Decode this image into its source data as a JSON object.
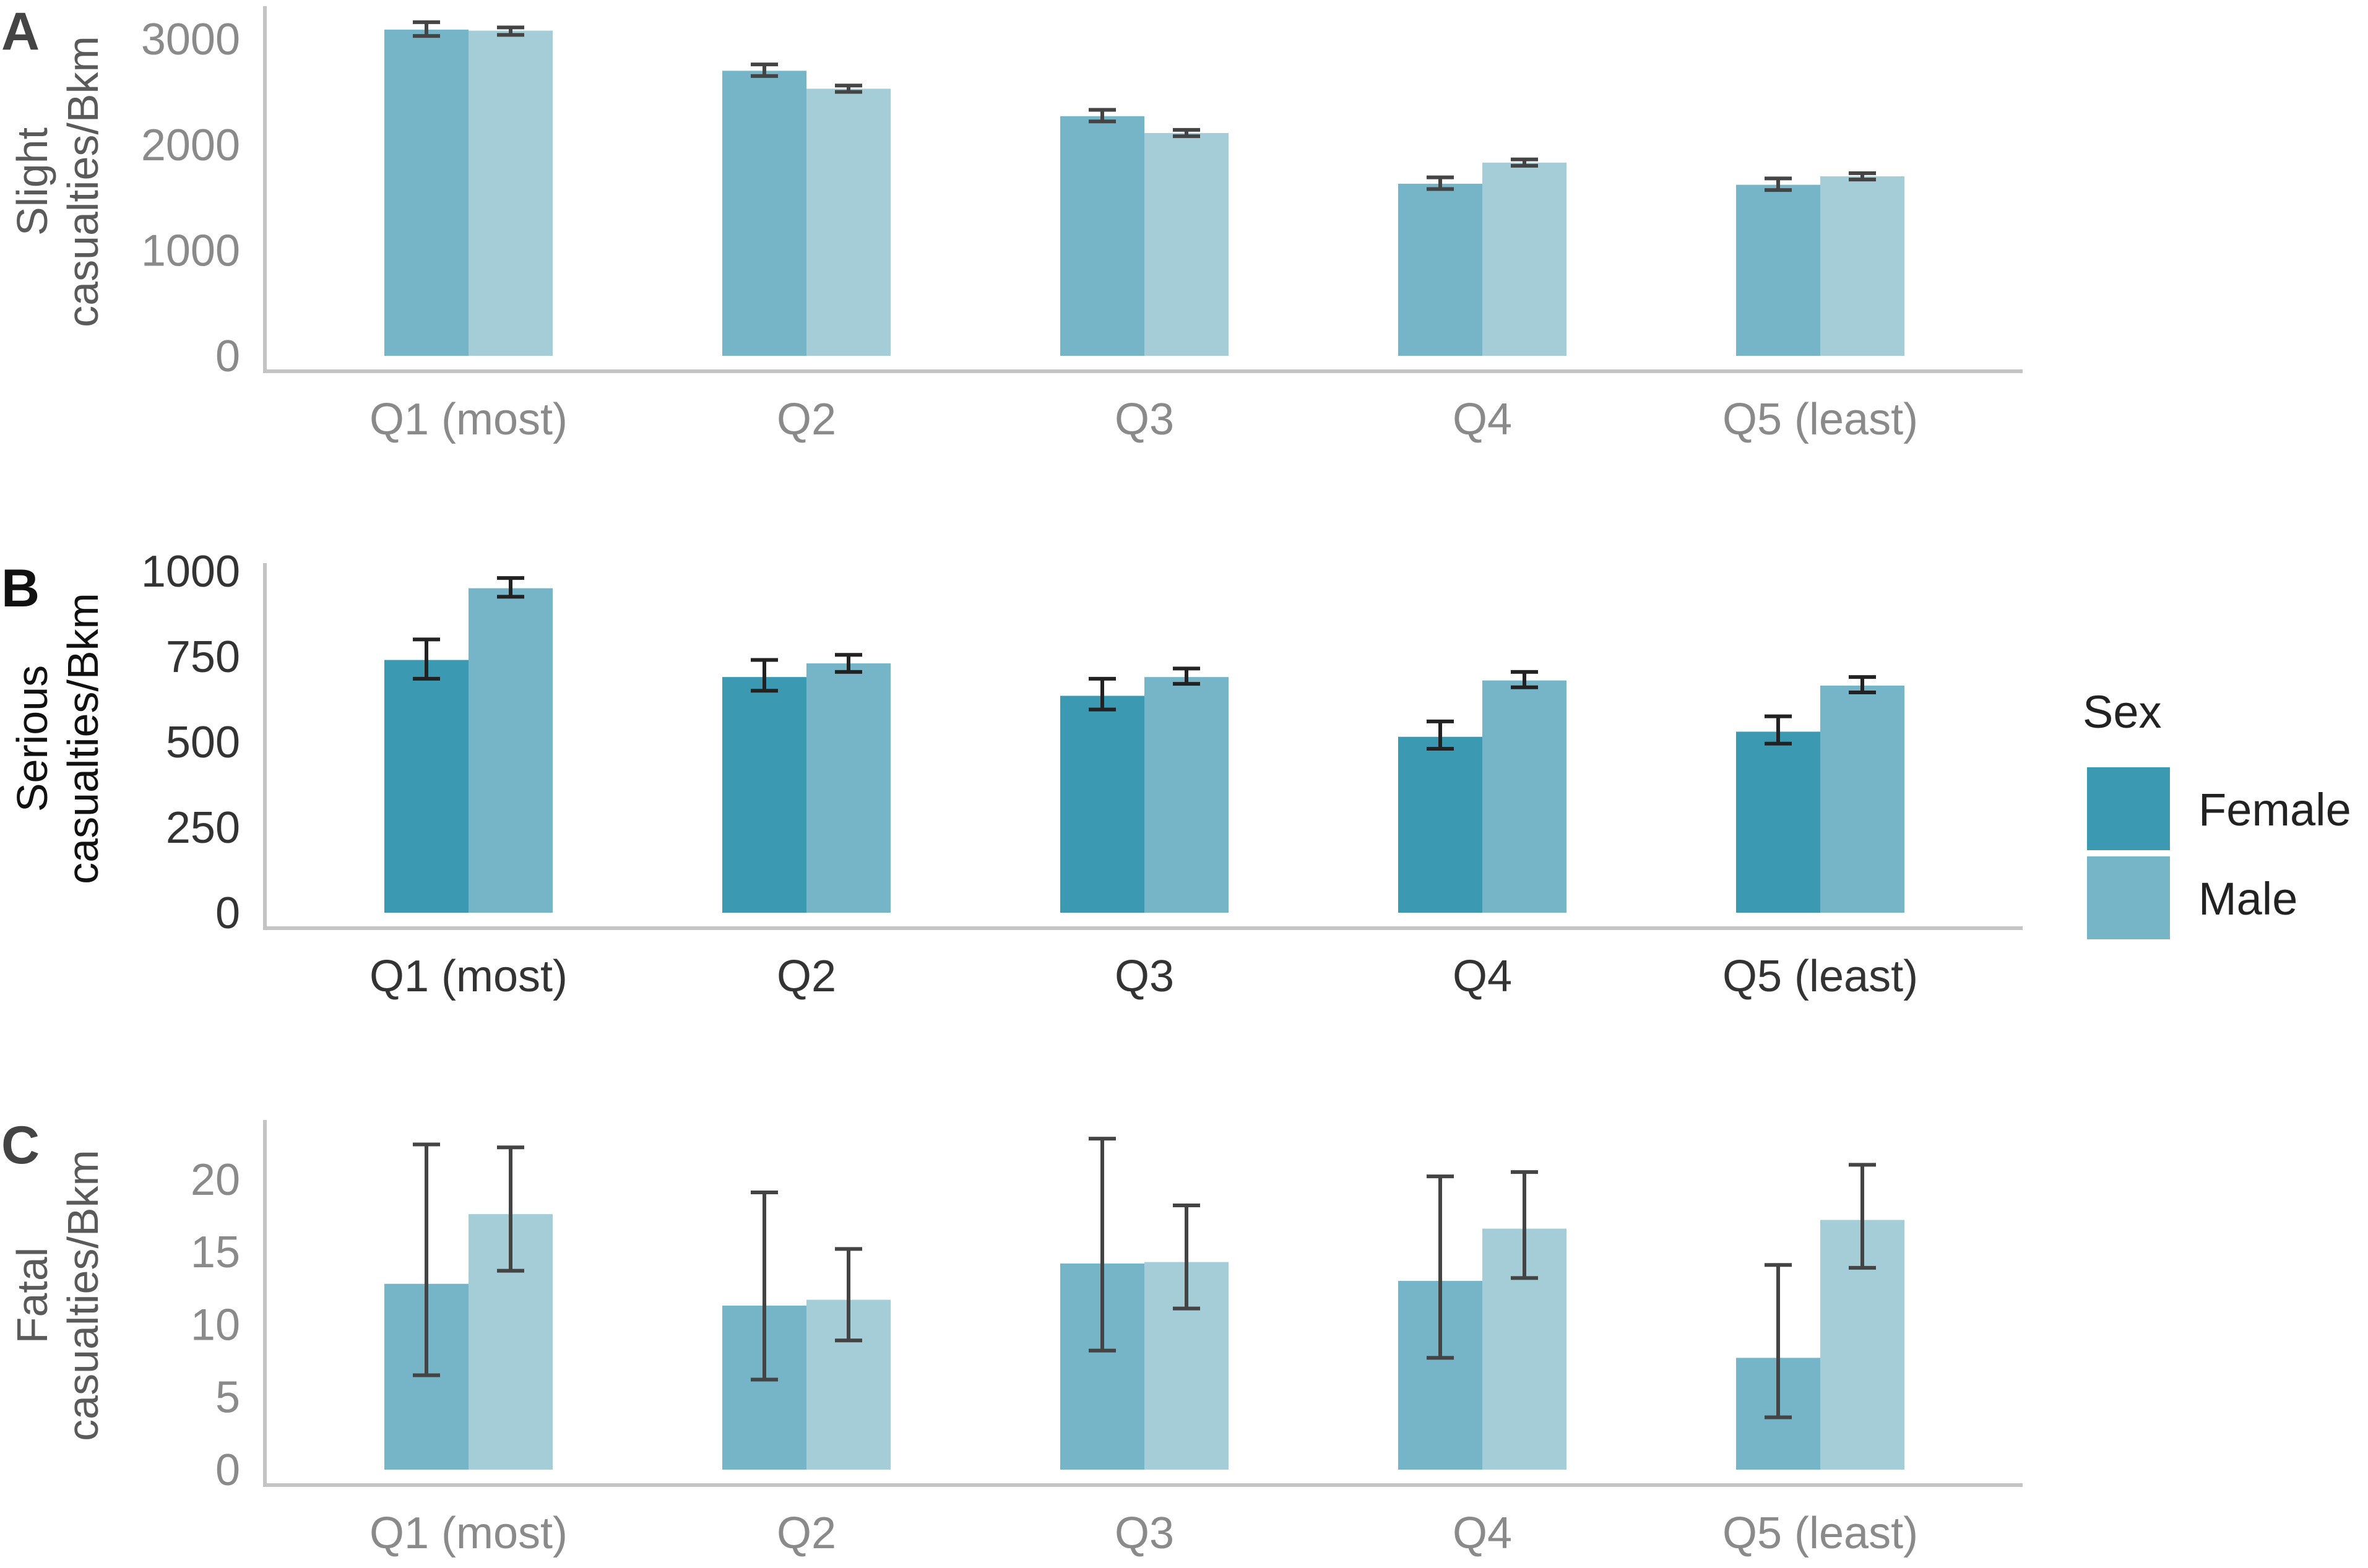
{
  "chart_data": [
    {
      "panel": "A",
      "type": "bar",
      "emphasis": "muted",
      "ylabel_lines": [
        "Slight",
        "casualties/Bkm"
      ],
      "categories": [
        "Q1 (most)",
        "Q2",
        "Q3",
        "Q4",
        "Q5 (least)"
      ],
      "ylim": [
        0,
        3300
      ],
      "yticks": [
        0,
        1000,
        2000,
        3000
      ],
      "series": [
        {
          "name": "Female",
          "values": [
            3090,
            2700,
            2270,
            1630,
            1620
          ],
          "err_low": [
            3030,
            2650,
            2220,
            1580,
            1570
          ],
          "err_high": [
            3160,
            2760,
            2330,
            1690,
            1680
          ]
        },
        {
          "name": "Male",
          "values": [
            3080,
            2530,
            2110,
            1830,
            1700
          ],
          "err_low": [
            3040,
            2500,
            2080,
            1800,
            1670
          ],
          "err_high": [
            3110,
            2560,
            2140,
            1860,
            1730
          ]
        }
      ]
    },
    {
      "panel": "B",
      "type": "bar",
      "emphasis": "highlight",
      "ylabel_lines": [
        "Serious",
        "casualties/Bkm"
      ],
      "categories": [
        "Q1 (most)",
        "Q2",
        "Q3",
        "Q4",
        "Q5 (least)"
      ],
      "ylim": [
        0,
        1020
      ],
      "yticks": [
        0,
        250,
        500,
        750,
        1000
      ],
      "series": [
        {
          "name": "Female",
          "values": [
            740,
            690,
            635,
            515,
            530
          ],
          "err_low": [
            685,
            650,
            595,
            480,
            495
          ],
          "err_high": [
            800,
            740,
            685,
            560,
            575
          ]
        },
        {
          "name": "Male",
          "values": [
            950,
            730,
            690,
            680,
            665
          ],
          "err_low": [
            925,
            705,
            670,
            660,
            645
          ],
          "err_high": [
            980,
            755,
            715,
            705,
            690
          ]
        }
      ]
    },
    {
      "panel": "C",
      "type": "bar",
      "emphasis": "muted",
      "ylabel_lines": [
        "Fatal",
        "casualties/Bkm"
      ],
      "categories": [
        "Q1 (most)",
        "Q2",
        "Q3",
        "Q4",
        "Q5 (least)"
      ],
      "ylim": [
        0,
        24
      ],
      "yticks": [
        0,
        5,
        10,
        15,
        20
      ],
      "series": [
        {
          "name": "Female",
          "values": [
            12.8,
            11.3,
            14.2,
            13.0,
            7.7
          ],
          "err_low": [
            6.5,
            6.2,
            8.2,
            7.7,
            3.6
          ],
          "err_high": [
            22.4,
            19.1,
            22.8,
            20.2,
            14.1
          ]
        },
        {
          "name": "Male",
          "values": [
            17.6,
            11.7,
            14.3,
            16.6,
            17.2
          ],
          "err_low": [
            13.7,
            8.9,
            11.1,
            13.2,
            13.9
          ],
          "err_high": [
            22.2,
            15.2,
            18.2,
            20.5,
            21.0
          ]
        }
      ]
    }
  ],
  "legend": {
    "title": "Sex",
    "items": [
      {
        "label": "Female"
      },
      {
        "label": "Male"
      }
    ]
  },
  "colors": {
    "female_muted": "#76b5c7",
    "male_muted": "#a4cdd8",
    "female_highlight": "#3b99b2",
    "male_highlight": "#76b5c7",
    "error_bar": "#444444",
    "error_bar_highlight": "#222222",
    "axis": "#c4c4c4",
    "tick_muted": "#8a8a8a",
    "tick_highlight": "#333333",
    "label_muted": "#5a5a5a",
    "label_highlight": "#111111",
    "letter_muted": "#444444",
    "letter_highlight": "#111111"
  }
}
